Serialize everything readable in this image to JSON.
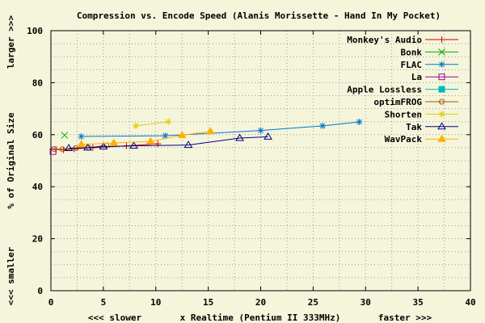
{
  "chart_data": {
    "type": "line",
    "title": "Compression vs. Encode Speed (Alanis Morissette - Hand In My Pocket)",
    "xlabel": {
      "left": "<<< slower",
      "center": "x Realtime (Pentium II 333MHz)",
      "right": "faster >>>"
    },
    "ylabel": {
      "top": "larger >>>",
      "center": "% of Original Size",
      "bottom": "<<< smaller"
    },
    "xlim": [
      0,
      40
    ],
    "ylim": [
      0,
      100
    ],
    "x_ticks": [
      0,
      5,
      10,
      15,
      20,
      25,
      30,
      35,
      40
    ],
    "y_ticks": [
      0,
      20,
      40,
      60,
      80,
      100
    ],
    "grid": true,
    "legend_position": "top-right",
    "series": [
      {
        "name": "Monkey's Audio",
        "color": "#cc0000",
        "marker": "plus",
        "points": [
          [
            0.5,
            54.3
          ],
          [
            1.2,
            54.2
          ],
          [
            2.2,
            54.5
          ],
          [
            4.0,
            55.0
          ],
          [
            7.2,
            55.7
          ],
          [
            10.2,
            56.5
          ]
        ]
      },
      {
        "name": "Bonk",
        "color": "#00aa00",
        "marker": "cross",
        "points": [
          [
            1.3,
            59.8
          ]
        ]
      },
      {
        "name": "FLAC",
        "color": "#0077cc",
        "marker": "star",
        "points": [
          [
            2.9,
            59.3
          ],
          [
            10.9,
            59.6
          ],
          [
            20.0,
            61.6
          ],
          [
            25.9,
            63.4
          ],
          [
            29.4,
            64.9
          ]
        ]
      },
      {
        "name": "La",
        "color": "#a000a0",
        "marker": "square-open",
        "points": [
          [
            0.2,
            53.5
          ]
        ]
      },
      {
        "name": "Apple Lossless",
        "color": "#00bbbb",
        "marker": "square-filled",
        "points": []
      },
      {
        "name": "optimFROG",
        "color": "#aa5500",
        "marker": "circle-open",
        "points": [
          [
            0.3,
            54.5
          ],
          [
            1.1,
            54.4
          ],
          [
            2.4,
            54.8
          ],
          [
            3.6,
            55.0
          ],
          [
            5.3,
            55.9
          ]
        ]
      },
      {
        "name": "Shorten",
        "color": "#e0d000",
        "marker": "star",
        "points": [
          [
            8.1,
            63.4
          ],
          [
            11.2,
            65.0
          ]
        ]
      },
      {
        "name": "Tak",
        "color": "#000080",
        "marker": "triangle-open",
        "points": [
          [
            1.7,
            54.8
          ],
          [
            3.5,
            55.0
          ],
          [
            5.0,
            55.4
          ],
          [
            7.9,
            55.7
          ],
          [
            13.1,
            56.0
          ],
          [
            18.0,
            58.7
          ],
          [
            20.7,
            59.2
          ]
        ]
      },
      {
        "name": "WavPack",
        "color": "#ffb000",
        "marker": "triangle-filled",
        "points": [
          [
            2.9,
            56.3
          ],
          [
            6.0,
            56.8
          ],
          [
            9.5,
            57.4
          ],
          [
            12.5,
            59.8
          ],
          [
            15.2,
            61.3
          ]
        ]
      }
    ]
  }
}
